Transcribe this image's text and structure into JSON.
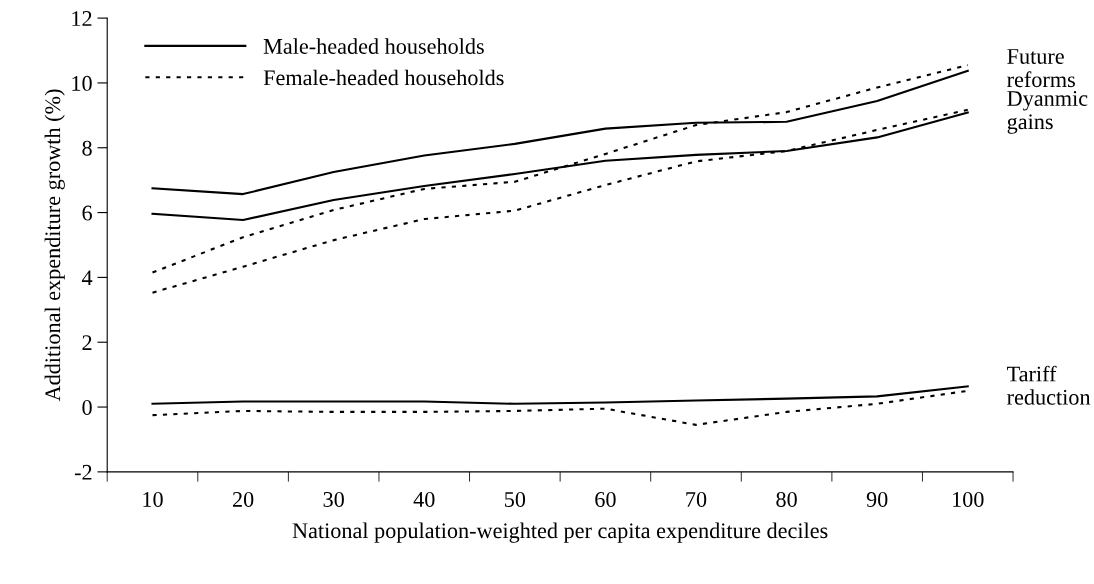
{
  "chart_data": {
    "type": "line",
    "xlabel": "National population-weighted per capita expenditure deciles",
    "ylabel": "Additional expenditure growth (%)",
    "categories": [
      "10",
      "20",
      "30",
      "40",
      "50",
      "60",
      "70",
      "80",
      "90",
      "100"
    ],
    "series": [
      {
        "name": "Male-headed households",
        "color": "#000000",
        "line_style": "solid",
        "values": [
          6.75,
          6.57,
          7.25,
          7.76,
          8.12,
          8.59,
          8.77,
          8.8,
          9.44,
          10.37
        ]
      },
      {
        "name": "Female-headed households",
        "color": "#000000",
        "line_style": "dotted",
        "values": [
          4.15,
          5.24,
          6.08,
          6.73,
          6.95,
          7.81,
          8.7,
          9.1,
          9.86,
          10.55
        ]
      },
      {
        "color": "#000000",
        "line_style": "solid",
        "values": [
          5.96,
          5.77,
          6.39,
          6.82,
          7.19,
          7.6,
          7.78,
          7.9,
          8.32,
          9.09
        ]
      },
      {
        "color": "#000000",
        "line_style": "dotted",
        "values": [
          3.53,
          4.33,
          5.15,
          5.8,
          6.06,
          6.85,
          7.58,
          7.9,
          8.55,
          9.17
        ]
      },
      {
        "color": "#000000",
        "line_style": "solid",
        "values": [
          0.1,
          0.17,
          0.17,
          0.17,
          0.1,
          0.14,
          0.2,
          0.26,
          0.33,
          0.64
        ]
      },
      {
        "color": "#000000",
        "line_style": "dotted",
        "values": [
          -0.25,
          -0.12,
          -0.15,
          -0.15,
          -0.12,
          -0.05,
          -0.55,
          -0.15,
          0.1,
          0.5
        ]
      }
    ],
    "ylim": [
      -2,
      12
    ],
    "yticks": [
      -2,
      0,
      2,
      4,
      6,
      8,
      10,
      12
    ],
    "annotations": [
      {
        "text": "Future\nreforms",
        "x": "100",
        "y": 10.4
      },
      {
        "text": "Dyanmic\ngains",
        "x": "100",
        "y": 9.1
      },
      {
        "text": "Tariff\nreduction",
        "x": "100",
        "y": 0.6
      }
    ],
    "legend": "top left",
    "grid": false
  }
}
